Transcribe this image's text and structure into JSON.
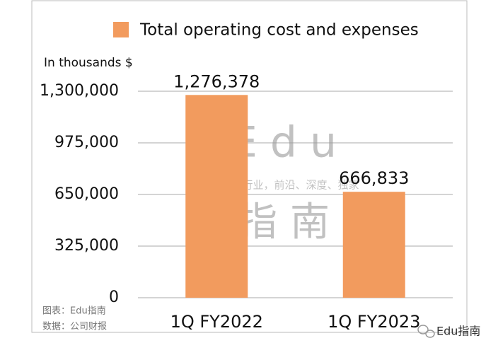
{
  "chart_data": {
    "type": "bar",
    "y_axis_label": "In thousands $",
    "categories": [
      "1Q FY2022",
      "1Q FY2023"
    ],
    "series": [
      {
        "name": "Total operating cost and expenses",
        "color": "#f29b5e",
        "values": [
          1276378,
          666833
        ],
        "value_labels": [
          "1,276,378",
          "666,833"
        ]
      }
    ],
    "ylim": [
      0,
      1300000
    ],
    "yticks": [
      0,
      {
        "value": 325000,
        "label": "325,000"
      },
      {
        "value": 650000,
        "label": "650,000"
      },
      {
        "value": 975000,
        "label": "975,000"
      },
      {
        "value": 1300000,
        "label": "1,300,000"
      }
    ],
    "grid": true,
    "legend_position": "top",
    "watermark": [
      "Edu",
      "教育行业，前沿、深度、独家",
      "指南"
    ],
    "notes": [
      "图表：Edu指南",
      "数据：公司财报"
    ],
    "brand": "Edu指南"
  }
}
